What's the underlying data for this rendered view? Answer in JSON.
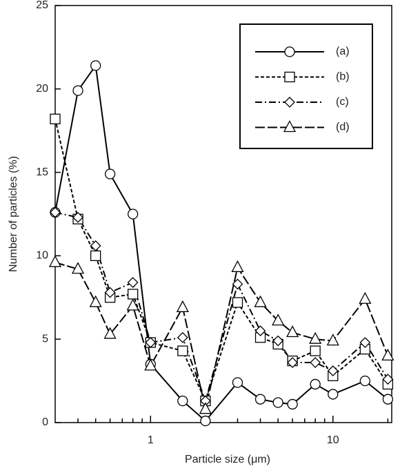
{
  "chart_data": {
    "type": "line",
    "xlabel": "Particle size (μm)",
    "ylabel": "Number of particles (%)",
    "xscale": "log",
    "x": [
      0.3,
      0.4,
      0.5,
      0.6,
      0.8,
      1,
      1.5,
      2,
      3,
      4,
      5,
      6,
      8,
      10,
      15,
      20
    ],
    "xlim": [
      0.3,
      21
    ],
    "xticks": [
      1,
      10
    ],
    "xminorticks": [
      0.4,
      0.5,
      0.6,
      0.7,
      0.8,
      0.9,
      2,
      3,
      4,
      5,
      6,
      7,
      8,
      9,
      20
    ],
    "ylim": [
      0,
      25
    ],
    "yticks": [
      0,
      5,
      10,
      15,
      20,
      25
    ],
    "legend": "upper right",
    "series": [
      {
        "name": "(a)",
        "color": "#000000",
        "marker": "circle",
        "linestyle": "solid",
        "values": [
          12.6,
          19.9,
          21.4,
          14.9,
          12.5,
          3.5,
          1.3,
          0.1,
          2.4,
          1.4,
          1.2,
          1.1,
          2.3,
          1.7,
          2.5,
          1.4
        ]
      },
      {
        "name": "(b)",
        "color": "#000000",
        "marker": "square",
        "linestyle": "dashed",
        "values": [
          18.2,
          12.2,
          10.0,
          7.5,
          7.7,
          4.8,
          4.3,
          1.3,
          7.2,
          5.1,
          4.7,
          3.7,
          4.3,
          2.8,
          4.4,
          2.3
        ]
      },
      {
        "name": "(c)",
        "color": "#000000",
        "marker": "diamond",
        "linestyle": "dashdot",
        "values": [
          12.6,
          12.3,
          10.6,
          7.8,
          8.4,
          4.8,
          5.1,
          1.3,
          8.3,
          5.5,
          4.9,
          3.6,
          3.6,
          3.1,
          4.8,
          2.6
        ]
      },
      {
        "name": "(d)",
        "color": "#000000",
        "marker": "triangle",
        "linestyle": "longdash",
        "values": [
          9.6,
          9.2,
          7.2,
          5.3,
          7.0,
          3.4,
          6.9,
          0.8,
          9.3,
          7.2,
          6.1,
          5.4,
          5.0,
          4.9,
          7.4,
          4.0
        ]
      }
    ]
  }
}
